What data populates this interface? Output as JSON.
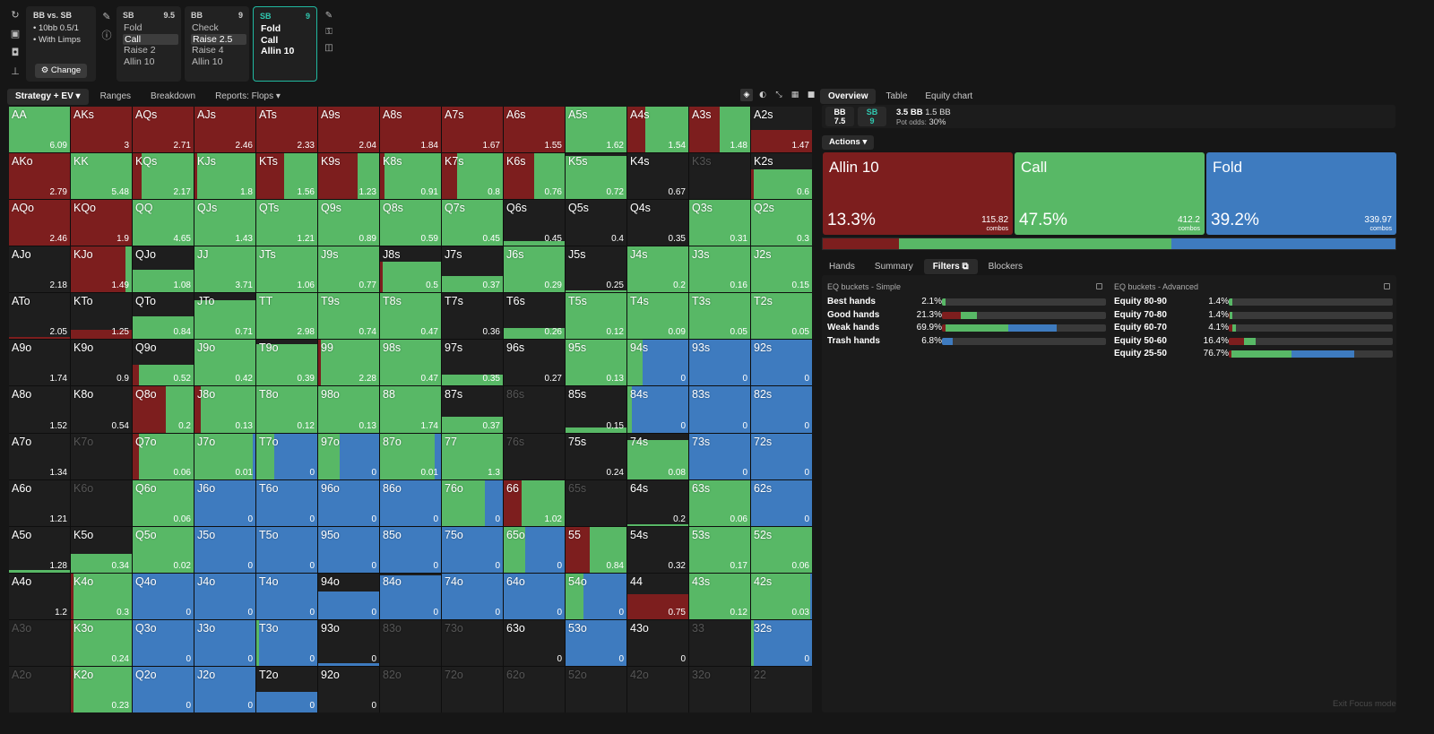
{
  "colors": {
    "raise": "#7d1e1e",
    "call": "#58b866",
    "fold": "#3e7bbf",
    "empty": "#1e1e1e",
    "accent": "#20b8a0"
  },
  "toolbar_icons": [
    "refresh-icon",
    "save-icon",
    "gamepad-icon",
    "align-icon"
  ],
  "game": {
    "title": "BB vs. SB",
    "line1": "• 10bb 0.5/1",
    "line2": "• With Limps",
    "change_label": "⚙ Change"
  },
  "nodes": [
    {
      "player": "SB",
      "size": "9.5",
      "options": [
        "Fold",
        "Call",
        "Raise 2",
        "Allin 10"
      ],
      "selected": 1
    },
    {
      "player": "BB",
      "size": "9",
      "options": [
        "Check",
        "Raise 2.5",
        "Raise 4",
        "Allin 10"
      ],
      "selected": 1
    },
    {
      "player": "SB",
      "size": "9",
      "options": [
        "Fold",
        "Call",
        "Allin 10"
      ],
      "selected": -1
    }
  ],
  "left_tabs": [
    "Strategy + EV ▾",
    "Ranges",
    "Breakdown",
    "Reports: Flops ▾"
  ],
  "view_icons": [
    "cube-icon",
    "contrast-icon",
    "collapse-icon",
    "grid-icon",
    "square-icon"
  ],
  "grid": [
    [
      [
        "AA",
        "6.09",
        1,
        0,
        1,
        0
      ],
      [
        "AKs",
        "3",
        1,
        1,
        0,
        0
      ],
      [
        "AQs",
        "2.71",
        1,
        1,
        0,
        0
      ],
      [
        "AJs",
        "2.46",
        1,
        1,
        0,
        0
      ],
      [
        "ATs",
        "2.33",
        1,
        1,
        0,
        0
      ],
      [
        "A9s",
        "2.04",
        1,
        1,
        0,
        0
      ],
      [
        "A8s",
        "1.84",
        1,
        1,
        0,
        0
      ],
      [
        "A7s",
        "1.67",
        1,
        1,
        0,
        0
      ],
      [
        "A6s",
        "1.55",
        1,
        1,
        0,
        0
      ],
      [
        "A5s",
        "1.62",
        1,
        0,
        1,
        0
      ],
      [
        "A4s",
        "1.54",
        1,
        0.3,
        0.7,
        0
      ],
      [
        "A3s",
        "1.48",
        1,
        0.5,
        0.5,
        0
      ],
      [
        "A2s",
        "1.47",
        0.5,
        1,
        0,
        0
      ]
    ],
    [
      [
        "AKo",
        "2.79",
        1,
        1,
        0,
        0
      ],
      [
        "KK",
        "5.48",
        1,
        0,
        1,
        0
      ],
      [
        "KQs",
        "2.17",
        1,
        0.15,
        0.85,
        0
      ],
      [
        "KJs",
        "1.8",
        1,
        0.05,
        0.95,
        0
      ],
      [
        "KTs",
        "1.56",
        1,
        0.45,
        0.55,
        0
      ],
      [
        "K9s",
        "1.23",
        1,
        0.65,
        0.35,
        0
      ],
      [
        "K8s",
        "0.91",
        1,
        0.08,
        0.92,
        0
      ],
      [
        "K7s",
        "0.8",
        1,
        0.25,
        0.75,
        0
      ],
      [
        "K6s",
        "0.76",
        1,
        0.5,
        0.5,
        0
      ],
      [
        "K5s",
        "0.72",
        0.95,
        0,
        1,
        0
      ],
      [
        "K4s",
        "0.67",
        0,
        0,
        0,
        0
      ],
      [
        "K3s",
        "",
        0,
        0,
        0,
        0,
        1
      ],
      [
        "K2s",
        "0.6",
        0.65,
        0.04,
        0.96,
        0
      ]
    ],
    [
      [
        "AQo",
        "2.46",
        1,
        1,
        0,
        0
      ],
      [
        "KQo",
        "1.9",
        1,
        1,
        0,
        0
      ],
      [
        "QQ",
        "4.65",
        1,
        0,
        1,
        0
      ],
      [
        "QJs",
        "1.43",
        1,
        0,
        1,
        0
      ],
      [
        "QTs",
        "1.21",
        1,
        0,
        1,
        0
      ],
      [
        "Q9s",
        "0.89",
        1,
        0,
        1,
        0
      ],
      [
        "Q8s",
        "0.59",
        1,
        0,
        1,
        0
      ],
      [
        "Q7s",
        "0.45",
        1,
        0,
        1,
        0
      ],
      [
        "Q6s",
        "0.45",
        0.1,
        0,
        1,
        0
      ],
      [
        "Q5s",
        "0.4",
        0,
        0,
        0,
        0
      ],
      [
        "Q4s",
        "0.35",
        0,
        0,
        0,
        0
      ],
      [
        "Q3s",
        "0.31",
        1,
        0,
        1,
        0
      ],
      [
        "Q2s",
        "0.3",
        1,
        0,
        1,
        0
      ]
    ],
    [
      [
        "AJo",
        "2.18",
        0,
        0,
        0,
        0
      ],
      [
        "KJo",
        "1.49",
        1,
        0.9,
        0.1,
        0
      ],
      [
        "QJo",
        "1.08",
        0.5,
        0,
        1,
        0
      ],
      [
        "JJ",
        "3.71",
        1,
        0,
        1,
        0
      ],
      [
        "JTs",
        "1.06",
        1,
        0,
        1,
        0
      ],
      [
        "J9s",
        "0.77",
        1,
        0,
        1,
        0
      ],
      [
        "J8s",
        "0.5",
        0.68,
        0.05,
        0.95,
        0
      ],
      [
        "J7s",
        "0.37",
        0.35,
        0,
        1,
        0
      ],
      [
        "J6s",
        "0.29",
        1,
        0,
        1,
        0
      ],
      [
        "J5s",
        "0.25",
        0.05,
        0,
        1,
        0
      ],
      [
        "J4s",
        "0.2",
        1,
        0,
        1,
        0
      ],
      [
        "J3s",
        "0.16",
        1,
        0,
        1,
        0
      ],
      [
        "J2s",
        "0.15",
        1,
        0,
        1,
        0
      ]
    ],
    [
      [
        "ATo",
        "2.05",
        0.05,
        1,
        0,
        0
      ],
      [
        "KTo",
        "1.25",
        0.2,
        1,
        0,
        0
      ],
      [
        "QTo",
        "0.84",
        0.5,
        0,
        1,
        0
      ],
      [
        "JTo",
        "0.71",
        0.85,
        0,
        1,
        0
      ],
      [
        "TT",
        "2.98",
        1,
        0,
        1,
        0
      ],
      [
        "T9s",
        "0.74",
        1,
        0,
        1,
        0
      ],
      [
        "T8s",
        "0.47",
        1,
        0,
        1,
        0
      ],
      [
        "T7s",
        "0.36",
        0,
        0,
        0,
        0
      ],
      [
        "T6s",
        "0.26",
        0.25,
        0,
        1,
        0
      ],
      [
        "T5s",
        "0.12",
        1,
        0,
        1,
        0
      ],
      [
        "T4s",
        "0.09",
        1,
        0,
        1,
        0
      ],
      [
        "T3s",
        "0.05",
        1,
        0,
        1,
        0
      ],
      [
        "T2s",
        "0.05",
        1,
        0,
        1,
        0
      ]
    ],
    [
      [
        "A9o",
        "1.74",
        0,
        0,
        0,
        0
      ],
      [
        "K9o",
        "0.9",
        0,
        0,
        0,
        0
      ],
      [
        "Q9o",
        "0.52",
        0.45,
        0.1,
        0.9,
        0
      ],
      [
        "J9o",
        "0.42",
        1,
        0,
        1,
        0
      ],
      [
        "T9o",
        "0.39",
        0.9,
        0,
        1,
        0
      ],
      [
        "99",
        "2.28",
        1,
        0.05,
        0.95,
        0
      ],
      [
        "98s",
        "0.47",
        1,
        0,
        1,
        0
      ],
      [
        "97s",
        "0.35",
        0.25,
        0,
        1,
        0
      ],
      [
        "96s",
        "0.27",
        0,
        0,
        0,
        0
      ],
      [
        "95s",
        "0.13",
        1,
        0,
        1,
        0
      ],
      [
        "94s",
        "0",
        1,
        0,
        0.25,
        0.75
      ],
      [
        "93s",
        "0",
        1,
        0,
        0,
        1
      ],
      [
        "92s",
        "0",
        1,
        0,
        0,
        1
      ]
    ],
    [
      [
        "A8o",
        "1.52",
        0,
        0,
        0,
        0
      ],
      [
        "K8o",
        "0.54",
        0,
        0,
        0,
        0
      ],
      [
        "Q8o",
        "0.2",
        1,
        0.55,
        0.45,
        0
      ],
      [
        "J8o",
        "0.13",
        1,
        0.1,
        0.9,
        0
      ],
      [
        "T8o",
        "0.12",
        1,
        0,
        1,
        0
      ],
      [
        "98o",
        "0.13",
        1,
        0,
        1,
        0
      ],
      [
        "88",
        "1.74",
        1,
        0,
        1,
        0
      ],
      [
        "87s",
        "0.37",
        0.35,
        0,
        1,
        0
      ],
      [
        "86s",
        "",
        0,
        0,
        0,
        0,
        1
      ],
      [
        "85s",
        "0.15",
        0.1,
        0,
        1,
        0
      ],
      [
        "84s",
        "0",
        1,
        0,
        0.08,
        0.92
      ],
      [
        "83s",
        "0",
        1,
        0,
        0,
        1
      ],
      [
        "82s",
        "0",
        1,
        0,
        0,
        1
      ]
    ],
    [
      [
        "A7o",
        "1.34",
        0,
        0,
        0,
        0
      ],
      [
        "K7o",
        "",
        0,
        0,
        0,
        0,
        1
      ],
      [
        "Q7o",
        "0.06",
        1,
        0.1,
        0.9,
        0
      ],
      [
        "J7o",
        "0.01",
        1,
        0,
        0.95,
        0.05
      ],
      [
        "T7o",
        "0",
        1,
        0,
        0.3,
        0.7
      ],
      [
        "97o",
        "0",
        1,
        0,
        0.35,
        0.65
      ],
      [
        "87o",
        "0.01",
        1,
        0,
        0.9,
        0.1
      ],
      [
        "77",
        "1.3",
        1,
        0,
        1,
        0
      ],
      [
        "76s",
        "",
        0,
        0,
        0,
        0,
        1
      ],
      [
        "75s",
        "0.24",
        0,
        0,
        0,
        0
      ],
      [
        "74s",
        "0.08",
        0.85,
        0,
        1,
        0
      ],
      [
        "73s",
        "0",
        1,
        0,
        0,
        1
      ],
      [
        "72s",
        "0",
        1,
        0,
        0,
        1
      ]
    ],
    [
      [
        "A6o",
        "1.21",
        0,
        0,
        0,
        0
      ],
      [
        "K6o",
        "",
        0,
        0,
        0,
        0,
        1
      ],
      [
        "Q6o",
        "0.06",
        1,
        0,
        1,
        0
      ],
      [
        "J6o",
        "0",
        1,
        0,
        0,
        1
      ],
      [
        "T6o",
        "0",
        1,
        0,
        0,
        1
      ],
      [
        "96o",
        "0",
        1,
        0,
        0,
        1
      ],
      [
        "86o",
        "0",
        1,
        0,
        0,
        1
      ],
      [
        "76o",
        "0",
        1,
        0,
        0.7,
        0.3
      ],
      [
        "66",
        "1.02",
        1,
        0.3,
        0.7,
        0
      ],
      [
        "65s",
        "",
        0,
        0,
        0,
        0,
        1
      ],
      [
        "64s",
        "0.2",
        0.04,
        0,
        1,
        0
      ],
      [
        "63s",
        "0.06",
        1,
        0,
        1,
        0
      ],
      [
        "62s",
        "0",
        1,
        0,
        0,
        1
      ]
    ],
    [
      [
        "A5o",
        "1.28",
        0.05,
        0,
        1,
        0
      ],
      [
        "K5o",
        "0.34",
        0.4,
        0,
        1,
        0
      ],
      [
        "Q5o",
        "0.02",
        1,
        0,
        1,
        0
      ],
      [
        "J5o",
        "0",
        1,
        0,
        0,
        1
      ],
      [
        "T5o",
        "0",
        1,
        0,
        0,
        1
      ],
      [
        "95o",
        "0",
        1,
        0,
        0,
        1
      ],
      [
        "85o",
        "0",
        1,
        0,
        0,
        1
      ],
      [
        "75o",
        "0",
        1,
        0,
        0,
        1
      ],
      [
        "65o",
        "0",
        1,
        0,
        0.35,
        0.65
      ],
      [
        "55",
        "0.84",
        1,
        0.4,
        0.6,
        0
      ],
      [
        "54s",
        "0.32",
        0,
        0,
        0,
        0
      ],
      [
        "53s",
        "0.17",
        1,
        0,
        1,
        0
      ],
      [
        "52s",
        "0.06",
        1,
        0,
        1,
        0
      ]
    ],
    [
      [
        "A4o",
        "1.2",
        0,
        0,
        0,
        0
      ],
      [
        "K4o",
        "0.3",
        1,
        0.05,
        0.95,
        0
      ],
      [
        "Q4o",
        "0",
        1,
        0,
        0,
        1
      ],
      [
        "J4o",
        "0",
        1,
        0,
        0,
        1
      ],
      [
        "T4o",
        "0",
        1,
        0,
        0,
        1
      ],
      [
        "94o",
        "0",
        0.6,
        0,
        0,
        1
      ],
      [
        "84o",
        "0",
        0.95,
        0,
        0,
        1
      ],
      [
        "74o",
        "0",
        1,
        0,
        0,
        1
      ],
      [
        "64o",
        "0",
        1,
        0,
        0,
        1
      ],
      [
        "54o",
        "0",
        1,
        0,
        0.3,
        0.7
      ],
      [
        "44",
        "0.75",
        0.55,
        1,
        0,
        0
      ],
      [
        "43s",
        "0.12",
        1,
        0,
        1,
        0
      ],
      [
        "42s",
        "0.03",
        1,
        0,
        0.97,
        0.03
      ]
    ],
    [
      [
        "A3o",
        "",
        0,
        0,
        0,
        0,
        1
      ],
      [
        "K3o",
        "0.24",
        1,
        0.05,
        0.95,
        0
      ],
      [
        "Q3o",
        "0",
        1,
        0,
        0,
        1
      ],
      [
        "J3o",
        "0",
        1,
        0,
        0,
        1
      ],
      [
        "T3o",
        "0",
        1,
        0,
        0.05,
        0.95
      ],
      [
        "93o",
        "0",
        0.05,
        0,
        0,
        1
      ],
      [
        "83o",
        "",
        0,
        0,
        0,
        0,
        1
      ],
      [
        "73o",
        "",
        0,
        0,
        0,
        0,
        1
      ],
      [
        "63o",
        "0",
        0,
        0,
        0,
        0
      ],
      [
        "53o",
        "0",
        1,
        0,
        0,
        1
      ],
      [
        "43o",
        "0",
        0,
        0,
        0,
        0
      ],
      [
        "33",
        "",
        0,
        0,
        0,
        0,
        1
      ],
      [
        "32s",
        "0",
        1,
        0,
        0.05,
        0.95
      ]
    ],
    [
      [
        "A2o",
        "",
        0,
        0,
        0,
        0,
        1
      ],
      [
        "K2o",
        "0.23",
        1,
        0.05,
        0.95,
        0
      ],
      [
        "Q2o",
        "0",
        1,
        0,
        0,
        1
      ],
      [
        "J2o",
        "0",
        1,
        0,
        0,
        1
      ],
      [
        "T2o",
        "0",
        0.45,
        0,
        0,
        1
      ],
      [
        "92o",
        "0",
        0,
        0,
        0,
        0
      ],
      [
        "82o",
        "",
        0,
        0,
        0,
        0,
        1
      ],
      [
        "72o",
        "",
        0,
        0,
        0,
        0,
        1
      ],
      [
        "62o",
        "",
        0,
        0,
        0,
        0,
        1
      ],
      [
        "52o",
        "",
        0,
        0,
        0,
        0,
        1
      ],
      [
        "42o",
        "",
        0,
        0,
        0,
        0,
        1
      ],
      [
        "32o",
        "",
        0,
        0,
        0,
        0,
        1
      ],
      [
        "22",
        "",
        0,
        0,
        0,
        0,
        1
      ]
    ]
  ],
  "right_tabs": [
    "Overview",
    "Table",
    "Equity chart"
  ],
  "pot": {
    "bb_label": "BB",
    "bb_val": "7.5",
    "sb_label": "SB",
    "sb_val": "9",
    "pot_main": "3.5 BB",
    "pot_extra": "1.5 BB",
    "odds_label": "Pot odds:",
    "odds_val": "30%"
  },
  "actions_label": "Actions ▾",
  "actions": [
    {
      "name": "Allin 10",
      "pct": "13.3%",
      "combos": "115.82",
      "combos_label": "combos",
      "share": 13.3
    },
    {
      "name": "Call",
      "pct": "47.5%",
      "combos": "412.2",
      "combos_label": "combos",
      "share": 47.5
    },
    {
      "name": "Fold",
      "pct": "39.2%",
      "combos": "339.97",
      "combos_label": "combos",
      "share": 39.2
    }
  ],
  "bottom_tabs": [
    "Hands",
    "Summary",
    "Filters ⧉",
    "Blockers"
  ],
  "simple": {
    "title": "EQ buckets - Simple",
    "rows": [
      {
        "label": "Best hands",
        "pct": "2.1%",
        "share": 2.1,
        "mix": [
          0,
          1,
          0
        ]
      },
      {
        "label": "Good hands",
        "pct": "21.3%",
        "share": 21.3,
        "mix": [
          0.55,
          0.45,
          0
        ]
      },
      {
        "label": "Weak hands",
        "pct": "69.9%",
        "share": 69.9,
        "mix": [
          0.03,
          0.55,
          0.42
        ]
      },
      {
        "label": "Trash hands",
        "pct": "6.8%",
        "share": 6.8,
        "mix": [
          0,
          0,
          1
        ]
      }
    ]
  },
  "advanced": {
    "title": "EQ buckets - Advanced",
    "rows": [
      {
        "label": "Equity 80-90",
        "pct": "1.4%",
        "share": 1.4,
        "mix": [
          0,
          1,
          0
        ]
      },
      {
        "label": "Equity 70-80",
        "pct": "1.4%",
        "share": 1.4,
        "mix": [
          0.4,
          0.6,
          0
        ]
      },
      {
        "label": "Equity 60-70",
        "pct": "4.1%",
        "share": 4.1,
        "mix": [
          0.5,
          0.5,
          0
        ]
      },
      {
        "label": "Equity 50-60",
        "pct": "16.4%",
        "share": 16.4,
        "mix": [
          0.55,
          0.45,
          0
        ]
      },
      {
        "label": "Equity 25-50",
        "pct": "76.7%",
        "share": 76.7,
        "mix": [
          0.02,
          0.48,
          0.5
        ]
      }
    ]
  },
  "exit_label": "Exit Focus mode"
}
